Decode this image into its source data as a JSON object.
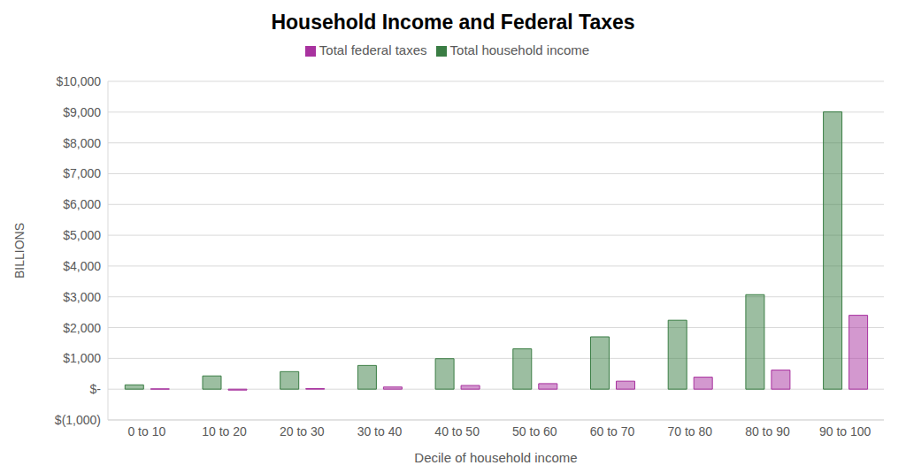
{
  "chart_data": {
    "type": "bar",
    "title": "Household Income and Federal Taxes",
    "x_label": "Decile of household income",
    "y_label": "BILLIONS",
    "categories": [
      "0 to 10",
      "10 to 20",
      "20 to 30",
      "30 to 40",
      "40 to 50",
      "50 to 60",
      "60 to 70",
      "70 to 80",
      "80 to 90",
      "90 to 100"
    ],
    "series": [
      {
        "name": "Total household income",
        "color": "#3a7d44",
        "values": [
          140,
          430,
          570,
          770,
          990,
          1310,
          1700,
          2240,
          3070,
          9010
        ]
      },
      {
        "name": "Total federal taxes",
        "color": "#a8329f",
        "values": [
          10,
          -30,
          20,
          70,
          120,
          180,
          260,
          390,
          620,
          2400
        ]
      }
    ],
    "ylim": [
      -1000,
      10000
    ],
    "yticks": [
      {
        "value": -1000,
        "label": "$(1,000)"
      },
      {
        "value": 0,
        "label": "$-"
      },
      {
        "value": 1000,
        "label": "$1,000"
      },
      {
        "value": 2000,
        "label": "$2,000"
      },
      {
        "value": 3000,
        "label": "$3,000"
      },
      {
        "value": 4000,
        "label": "$4,000"
      },
      {
        "value": 5000,
        "label": "$5,000"
      },
      {
        "value": 6000,
        "label": "$6,000"
      },
      {
        "value": 7000,
        "label": "$7,000"
      },
      {
        "value": 8000,
        "label": "$8,000"
      },
      {
        "value": 9000,
        "label": "$9,000"
      },
      {
        "value": 10000,
        "label": "$10,000"
      }
    ],
    "grid": true,
    "legend": "top"
  }
}
